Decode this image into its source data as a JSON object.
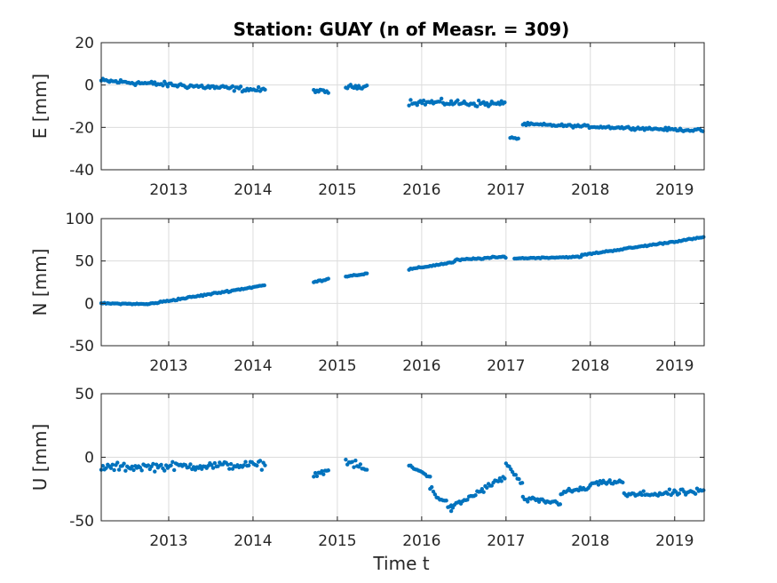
{
  "chart_data": {
    "type": "scatter",
    "title": "Station: GUAY (n of Measr. = 309)",
    "xlabel": "Time t",
    "color": "#0072bd",
    "xlim": [
      2012.2,
      2019.35
    ],
    "xticks": [
      2013,
      2014,
      2015,
      2016,
      2017,
      2018,
      2019
    ],
    "grid": true,
    "panels": [
      {
        "id": "E",
        "ylabel": "E [mm]",
        "ylim": [
          -40,
          20
        ],
        "yticks": [
          -40,
          -20,
          0,
          20
        ],
        "segments": [
          {
            "x0": 2012.2,
            "x1": 2014.15,
            "y0": 2,
            "y1": -2.5,
            "noise": 1.5
          },
          {
            "x0": 2014.72,
            "x1": 2014.9,
            "y0": -2.5,
            "y1": -3.5,
            "noise": 1.0
          },
          {
            "x0": 2015.1,
            "x1": 2015.35,
            "y0": -1,
            "y1": -0.5,
            "noise": 1.2
          },
          {
            "x0": 2015.85,
            "x1": 2017.0,
            "y0": -8,
            "y1": -9,
            "noise": 1.8
          },
          {
            "x0": 2017.05,
            "x1": 2017.15,
            "y0": -24.5,
            "y1": -25.5,
            "noise": 0.6
          },
          {
            "x0": 2017.2,
            "x1": 2019.35,
            "y0": -18.5,
            "y1": -21.5,
            "noise": 0.8
          }
        ]
      },
      {
        "id": "N",
        "ylabel": "N [mm]",
        "ylim": [
          -50,
          100
        ],
        "yticks": [
          -50,
          0,
          50,
          100
        ],
        "segments": [
          {
            "x0": 2012.2,
            "x1": 2012.75,
            "y0": 0,
            "y1": -1,
            "noise": 0.8
          },
          {
            "x0": 2012.75,
            "x1": 2014.15,
            "y0": -1,
            "y1": 21.5,
            "noise": 1.2
          },
          {
            "x0": 2014.72,
            "x1": 2014.9,
            "y0": 25,
            "y1": 29,
            "noise": 1.0
          },
          {
            "x0": 2015.1,
            "x1": 2015.35,
            "y0": 32,
            "y1": 35,
            "noise": 1.0
          },
          {
            "x0": 2015.85,
            "x1": 2016.4,
            "y0": 40,
            "y1": 49,
            "noise": 1.0
          },
          {
            "x0": 2016.4,
            "x1": 2017.0,
            "y0": 51,
            "y1": 55,
            "noise": 1.2
          },
          {
            "x0": 2017.1,
            "x1": 2017.9,
            "y0": 53,
            "y1": 55,
            "noise": 0.8
          },
          {
            "x0": 2017.9,
            "x1": 2019.35,
            "y0": 57,
            "y1": 78,
            "noise": 1.0
          }
        ]
      },
      {
        "id": "U",
        "ylabel": "U [mm]",
        "ylim": [
          -50,
          50
        ],
        "yticks": [
          -50,
          0,
          50
        ],
        "segments": [
          {
            "x0": 2012.2,
            "x1": 2014.15,
            "y0": -8,
            "y1": -6,
            "noise": 4.0
          },
          {
            "x0": 2014.72,
            "x1": 2014.9,
            "y0": -14,
            "y1": -10,
            "noise": 2.0
          },
          {
            "x0": 2015.1,
            "x1": 2015.35,
            "y0": -3,
            "y1": -10,
            "noise": 3.5
          },
          {
            "x0": 2015.85,
            "x1": 2016.1,
            "y0": -7,
            "y1": -15,
            "noise": 2.0
          },
          {
            "x0": 2016.1,
            "x1": 2016.35,
            "y0": -25,
            "y1": -40,
            "noise": 4.0
          },
          {
            "x0": 2016.35,
            "x1": 2017.0,
            "y0": -40,
            "y1": -15,
            "noise": 3.0
          },
          {
            "x0": 2017.0,
            "x1": 2017.2,
            "y0": -5,
            "y1": -22,
            "noise": 2.0
          },
          {
            "x0": 2017.2,
            "x1": 2017.65,
            "y0": -33,
            "y1": -36,
            "noise": 2.5
          },
          {
            "x0": 2017.65,
            "x1": 2018.0,
            "y0": -28,
            "y1": -24,
            "noise": 2.5
          },
          {
            "x0": 2018.0,
            "x1": 2018.4,
            "y0": -21,
            "y1": -19,
            "noise": 2.0
          },
          {
            "x0": 2018.4,
            "x1": 2019.35,
            "y0": -30,
            "y1": -27,
            "noise": 3.0
          }
        ]
      }
    ]
  }
}
